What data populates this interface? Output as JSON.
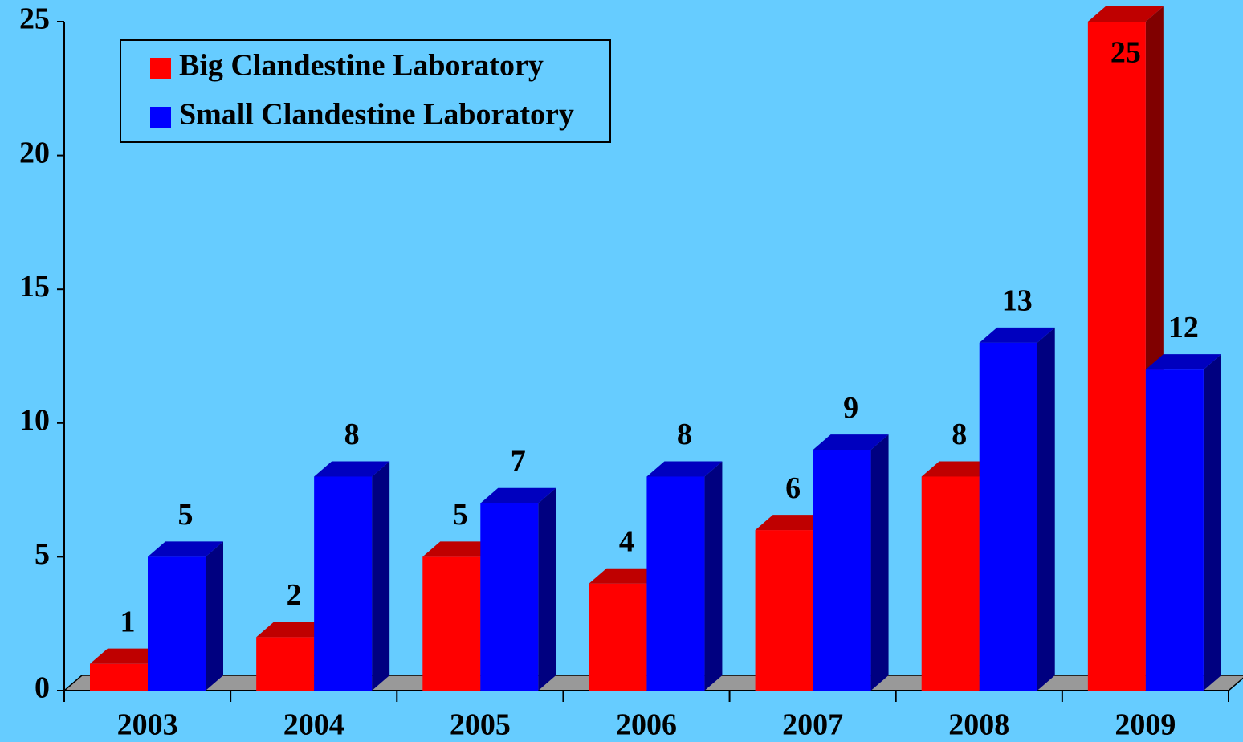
{
  "chart_data": {
    "type": "bar3d",
    "categories": [
      "2003",
      "2004",
      "2005",
      "2006",
      "2007",
      "2008",
      "2009"
    ],
    "series": [
      {
        "name": "Big Clandestine Laboratory",
        "color": "#ff0000",
        "values": [
          1,
          2,
          5,
          4,
          6,
          8,
          25
        ]
      },
      {
        "name": "Small Clandestine Laboratory",
        "color": "#0000ff",
        "values": [
          5,
          8,
          7,
          8,
          9,
          13,
          12
        ]
      }
    ],
    "ylim": [
      0,
      25
    ],
    "yticks": [
      0,
      5,
      10,
      15,
      20,
      25
    ],
    "legend": "upper left",
    "background": "#66ccff"
  }
}
